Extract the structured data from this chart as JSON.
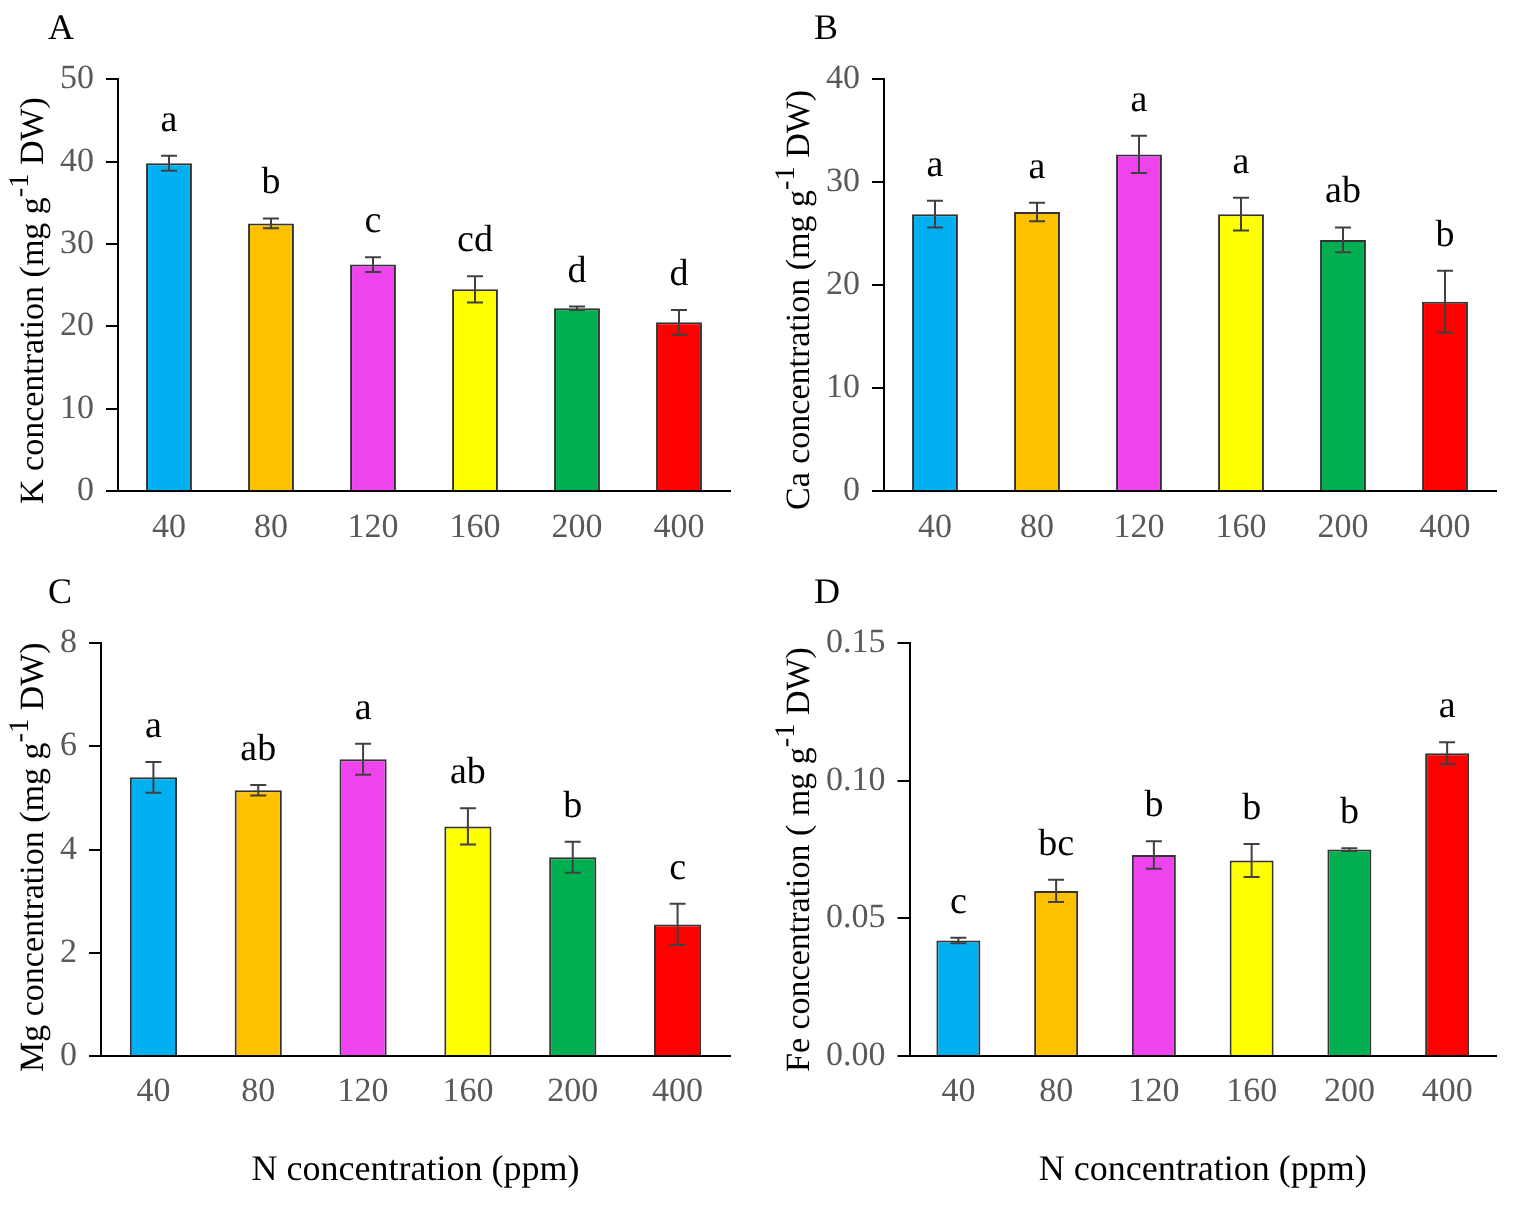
{
  "chart_data": [
    {
      "type": "bar",
      "title": "A",
      "ylabel": "K concentration (mg g$^{-1}$ DW)",
      "categories": [
        "40",
        "80",
        "120",
        "160",
        "200",
        "400"
      ],
      "values": [
        39.8,
        32.5,
        27.5,
        24.5,
        22.2,
        20.5
      ],
      "errors": [
        0.9,
        0.6,
        0.9,
        1.6,
        0.2,
        1.5
      ],
      "colors": [
        "#00b0f0",
        "#ffc000",
        "#ee44ee",
        "#ffff00",
        "#00b050",
        "#ff0000"
      ],
      "ylim": [
        0,
        50
      ],
      "yticks": [
        0,
        10,
        20,
        30,
        40,
        50
      ],
      "grid": false,
      "legend": false,
      "annotations": [
        {
          "text": "a",
          "x": "40",
          "y": 40.7
        },
        {
          "text": "b",
          "x": "80",
          "y": 33.1
        },
        {
          "text": "c",
          "x": "120",
          "y": 28.4
        },
        {
          "text": "cd",
          "x": "160",
          "y": 26.1
        },
        {
          "text": "d",
          "x": "200",
          "y": 22.4
        },
        {
          "text": "d",
          "x": "400",
          "y": 22
        }
      ]
    },
    {
      "type": "bar",
      "title": "B",
      "ylabel": "Ca concentration (mg g$^{-1}$ DW)",
      "categories": [
        "40",
        "80",
        "120",
        "160",
        "200",
        "400"
      ],
      "values": [
        26.9,
        27.1,
        32.7,
        26.9,
        24.4,
        18.4
      ],
      "errors": [
        1.3,
        0.9,
        1.8,
        1.6,
        1.2,
        3.0
      ],
      "colors": [
        "#00b0f0",
        "#ffc000",
        "#ee44ee",
        "#ffff00",
        "#00b050",
        "#ff0000"
      ],
      "ylim": [
        0,
        40
      ],
      "yticks": [
        0,
        10,
        20,
        30,
        40
      ],
      "grid": false,
      "legend": false,
      "annotations": [
        {
          "text": "a",
          "x": "40",
          "y": 28.2
        },
        {
          "text": "a",
          "x": "80",
          "y": 28
        },
        {
          "text": "a",
          "x": "120",
          "y": 34.5
        },
        {
          "text": "a",
          "x": "160",
          "y": 28.5
        },
        {
          "text": "ab",
          "x": "200",
          "y": 25.6
        },
        {
          "text": "b",
          "x": "400",
          "y": 21.4
        }
      ]
    },
    {
      "type": "bar",
      "title": "C",
      "xlabel": "N concentration (ppm)",
      "ylabel": "Mg concentration (mg g$^{-1}$ DW)",
      "categories": [
        "40",
        "80",
        "120",
        "160",
        "200",
        "400"
      ],
      "values": [
        5.4,
        5.15,
        5.75,
        4.45,
        3.85,
        2.55
      ],
      "errors": [
        0.3,
        0.1,
        0.3,
        0.35,
        0.3,
        0.4
      ],
      "colors": [
        "#00b0f0",
        "#ffc000",
        "#ee44ee",
        "#ffff00",
        "#00b050",
        "#ff0000"
      ],
      "ylim": [
        0,
        8
      ],
      "yticks": [
        0,
        2,
        4,
        6,
        8
      ],
      "grid": false,
      "legend": false,
      "annotations": [
        {
          "text": "a",
          "x": "40",
          "y": 5.7
        },
        {
          "text": "ab",
          "x": "80",
          "y": 5.25
        },
        {
          "text": "a",
          "x": "120",
          "y": 6.05
        },
        {
          "text": "ab",
          "x": "160",
          "y": 4.8
        },
        {
          "text": "b",
          "x": "200",
          "y": 4.15
        },
        {
          "text": "c",
          "x": "400",
          "y": 2.95
        }
      ]
    },
    {
      "type": "bar",
      "title": "D",
      "xlabel": "N concentration (ppm)",
      "ylabel": "Fe concentration ( mg g$^{-1}$ DW)",
      "categories": [
        "40",
        "80",
        "120",
        "160",
        "200",
        "400"
      ],
      "values": [
        0.042,
        0.06,
        0.073,
        0.071,
        0.075,
        0.11
      ],
      "errors": [
        0.001,
        0.004,
        0.005,
        0.006,
        0.0005,
        0.004
      ],
      "colors": [
        "#00b0f0",
        "#ffc000",
        "#ee44ee",
        "#ffff00",
        "#00b050",
        "#ff0000"
      ],
      "ylim": [
        0,
        0.15
      ],
      "yticks": [
        {
          "value": 0,
          "label": "0.00"
        },
        {
          "value": 0.05,
          "label": "0.05"
        },
        {
          "value": 0.1,
          "label": "0.10"
        },
        {
          "value": 0.15,
          "label": "0.15"
        }
      ],
      "grid": false,
      "legend": false,
      "annotations": [
        {
          "text": "c",
          "x": "40",
          "y": 0.043
        },
        {
          "text": "bc",
          "x": "80",
          "y": 0.064
        },
        {
          "text": "b",
          "x": "120",
          "y": 0.078
        },
        {
          "text": "b",
          "x": "160",
          "y": 0.077
        },
        {
          "text": "b",
          "x": "200",
          "y": 0.0755
        },
        {
          "text": "a",
          "x": "400",
          "y": 0.114
        }
      ]
    }
  ]
}
